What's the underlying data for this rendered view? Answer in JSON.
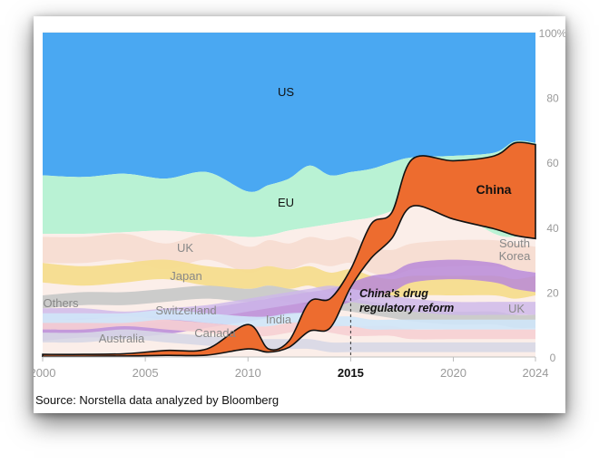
{
  "source": "Source: Norstella data analyzed by Bloomberg",
  "colors": {
    "us": "#4aa8f2",
    "eu": "#b9f2d4",
    "china": "#ed6c2f",
    "south_korea": "#b98ad8",
    "uk": "#f7dcd2",
    "japan": "#f6dc8e",
    "switzerland": "#c9c9c9",
    "india": "#cdb7ea",
    "canada": "#f6cfd3",
    "australia": "#d7d7e6",
    "others": "#cfe6f8"
  },
  "chart_data": {
    "type": "area",
    "stacked": true,
    "normalized": true,
    "x": [
      2000,
      2002,
      2004,
      2006,
      2008,
      2010,
      2011,
      2012,
      2013,
      2014,
      2015,
      2016,
      2017,
      2018,
      2020,
      2022,
      2023,
      2024
    ],
    "xticks": [
      "2000",
      "2005",
      "2010",
      "2015",
      "2020",
      "2024"
    ],
    "xtick_values": [
      2000,
      2005,
      2010,
      2015,
      2020,
      2024
    ],
    "yticks": [
      "0",
      "20",
      "40",
      "60",
      "80",
      "100%"
    ],
    "ytick_values": [
      0,
      20,
      40,
      60,
      80,
      100
    ],
    "ylim": [
      0,
      100
    ],
    "xlim": [
      2000,
      2024
    ],
    "series_labels": {
      "us": "US",
      "eu": "EU",
      "china": "China",
      "south_korea": "South Korea",
      "uk_left": "UK",
      "uk_right": "UK",
      "japan": "Japan",
      "switzerland": "Switzerland",
      "india": "India",
      "canada": "Canada",
      "australia": "Australia",
      "others": "Others"
    },
    "china_band_lower": [
      0.2,
      0.2,
      0.3,
      0.5,
      0.6,
      2.5,
      1.5,
      3.0,
      8.0,
      9.0,
      21.5,
      30.5,
      36.5,
      46.5,
      42.5,
      39.5,
      37.5,
      36.5
    ],
    "china_band_upper": [
      0.8,
      0.8,
      1.0,
      2.0,
      2.5,
      10.0,
      2.5,
      5.0,
      17.0,
      18.0,
      27.0,
      41.0,
      44.5,
      61.0,
      60.5,
      62.0,
      66.0,
      65.5
    ],
    "us_eu_boundary": [
      56,
      55.5,
      56.5,
      55,
      57,
      51,
      53,
      55,
      59,
      56,
      57,
      58,
      60,
      61.5,
      62,
      63,
      66.5,
      66
    ],
    "annotations": {
      "event_year": 2015,
      "event_label": "2015",
      "event_text": [
        "China's drug",
        "regulatory reform"
      ]
    },
    "title": "",
    "xlabel": "",
    "ylabel": ""
  }
}
